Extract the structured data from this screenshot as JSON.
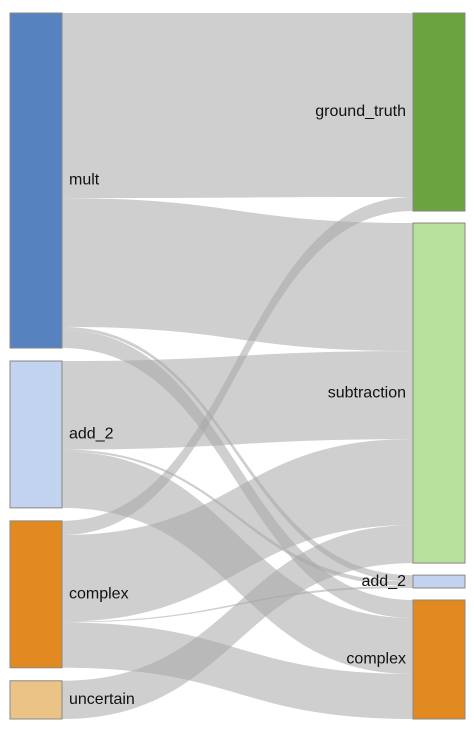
{
  "chart_data": {
    "type": "sankey",
    "source_nodes": [
      {
        "id": "mult",
        "label": "mult",
        "color": "#5682c0"
      },
      {
        "id": "add_2_src",
        "label": "add_2",
        "color": "#c1d3ee"
      },
      {
        "id": "complex_src",
        "label": "complex",
        "color": "#e2891f"
      },
      {
        "id": "uncertain",
        "label": "uncertain",
        "color": "#ecc387"
      }
    ],
    "target_nodes": [
      {
        "id": "ground_truth",
        "label": "ground_truth",
        "color": "#6ba341"
      },
      {
        "id": "subtraction",
        "label": "subtraction",
        "color": "#b7e09a"
      },
      {
        "id": "add_2_tgt",
        "label": "add_2",
        "color": "#c1d3ee"
      },
      {
        "id": "complex_tgt",
        "label": "complex",
        "color": "#e2891f"
      }
    ],
    "links": [
      {
        "source": "mult",
        "target": "ground_truth",
        "value": 184
      },
      {
        "source": "mult",
        "target": "subtraction",
        "value": 128
      },
      {
        "source": "mult",
        "target": "add_2_tgt",
        "value": 3
      },
      {
        "source": "mult",
        "target": "complex_tgt",
        "value": 18
      },
      {
        "source": "add_2_src",
        "target": "subtraction",
        "value": 88
      },
      {
        "source": "add_2_src",
        "target": "add_2_tgt",
        "value": 2
      },
      {
        "source": "add_2_src",
        "target": "complex_tgt",
        "value": 56
      },
      {
        "source": "complex_src",
        "target": "ground_truth",
        "value": 14
      },
      {
        "source": "complex_src",
        "target": "subtraction",
        "value": 86
      },
      {
        "source": "complex_src",
        "target": "add_2_tgt",
        "value": 1
      },
      {
        "source": "complex_src",
        "target": "complex_tgt",
        "value": 45
      },
      {
        "source": "uncertain",
        "target": "subtraction",
        "value": 38
      }
    ]
  }
}
